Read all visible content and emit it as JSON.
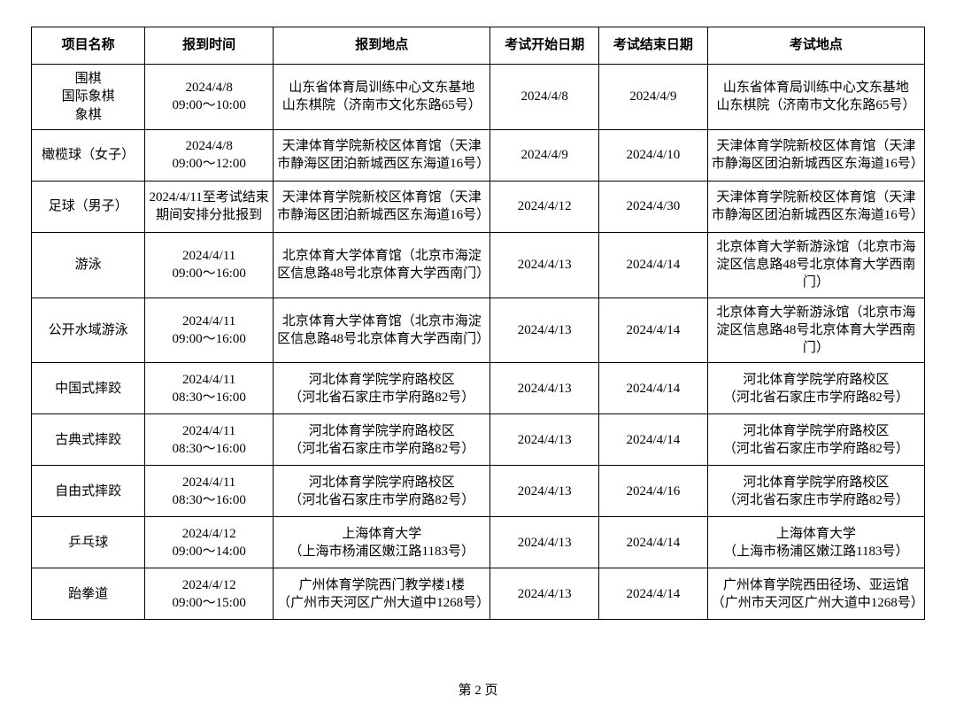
{
  "columns": [
    "项目名称",
    "报到时间",
    "报到地点",
    "考试开始日期",
    "考试结束日期",
    "考试地点"
  ],
  "rows": [
    [
      "围棋\n国际象棋\n象棋",
      "2024/4/8\n09:00～10:00",
      "山东省体育局训练中心文东基地\n山东棋院（济南市文化东路65号）",
      "2024/4/8",
      "2024/4/9",
      "山东省体育局训练中心文东基地\n山东棋院（济南市文化东路65号）"
    ],
    [
      "橄榄球（女子）",
      "2024/4/8\n09:00～12:00",
      "天津体育学院新校区体育馆（天津市静海区团泊新城西区东海道16号）",
      "2024/4/9",
      "2024/4/10",
      "天津体育学院新校区体育馆（天津市静海区团泊新城西区东海道16号）"
    ],
    [
      "足球（男子）",
      "2024/4/11至考试结束期间安排分批报到",
      "天津体育学院新校区体育馆（天津市静海区团泊新城西区东海道16号）",
      "2024/4/12",
      "2024/4/30",
      "天津体育学院新校区体育馆（天津市静海区团泊新城西区东海道16号）"
    ],
    [
      "游泳",
      "2024/4/11\n09:00～16:00",
      "北京体育大学体育馆（北京市海淀区信息路48号北京体育大学西南门）",
      "2024/4/13",
      "2024/4/14",
      "北京体育大学新游泳馆（北京市海淀区信息路48号北京体育大学西南门）"
    ],
    [
      "公开水域游泳",
      "2024/4/11\n09:00～16:00",
      "北京体育大学体育馆（北京市海淀区信息路48号北京体育大学西南门）",
      "2024/4/13",
      "2024/4/14",
      "北京体育大学新游泳馆（北京市海淀区信息路48号北京体育大学西南门）"
    ],
    [
      "中国式摔跤",
      "2024/4/11\n08:30～16:00",
      "河北体育学院学府路校区\n（河北省石家庄市学府路82号）",
      "2024/4/13",
      "2024/4/14",
      "河北体育学院学府路校区\n（河北省石家庄市学府路82号）"
    ],
    [
      "古典式摔跤",
      "2024/4/11\n08:30～16:00",
      "河北体育学院学府路校区\n（河北省石家庄市学府路82号）",
      "2024/4/13",
      "2024/4/14",
      "河北体育学院学府路校区\n（河北省石家庄市学府路82号）"
    ],
    [
      "自由式摔跤",
      "2024/4/11\n08:30～16:00",
      "河北体育学院学府路校区\n（河北省石家庄市学府路82号）",
      "2024/4/13",
      "2024/4/16",
      "河北体育学院学府路校区\n（河北省石家庄市学府路82号）"
    ],
    [
      "乒乓球",
      "2024/4/12\n09:00～14:00",
      "上海体育大学\n（上海市杨浦区嫩江路1183号）",
      "2024/4/13",
      "2024/4/14",
      "上海体育大学\n（上海市杨浦区嫩江路1183号）"
    ],
    [
      "跆拳道",
      "2024/4/12\n09:00～15:00",
      "广州体育学院西门教学楼1楼\n（广州市天河区广州大道中1268号）",
      "2024/4/13",
      "2024/4/14",
      "广州体育学院西田径场、亚运馆\n（广州市天河区广州大道中1268号）"
    ]
  ],
  "page_label": "第 2 页"
}
